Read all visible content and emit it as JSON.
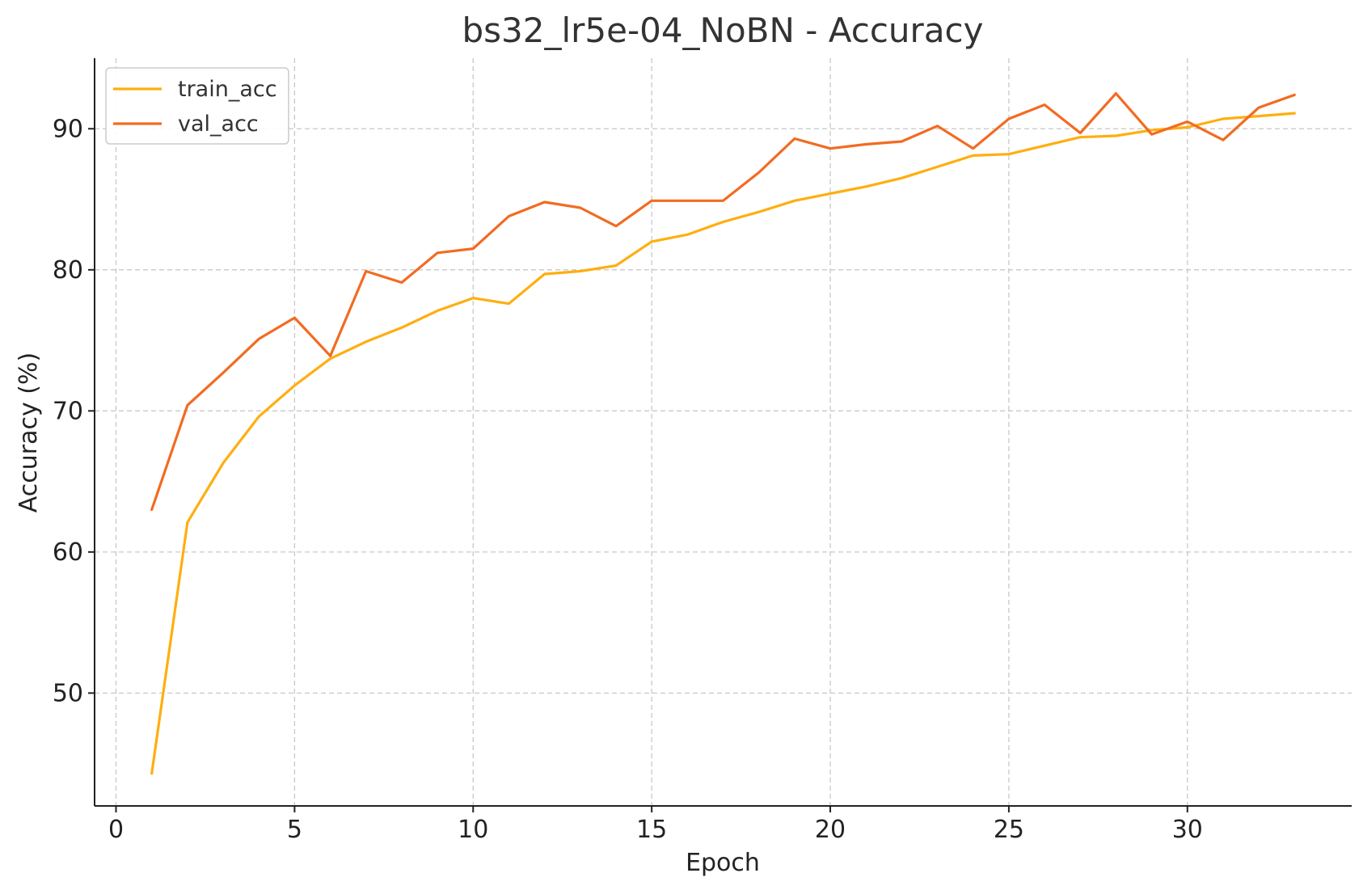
{
  "chart_data": {
    "type": "line",
    "title": "bs32_lr5e-04_NoBN - Accuracy",
    "xlabel": "Epoch",
    "ylabel": "Accuracy (%)",
    "xlim": [
      -0.6,
      34.6
    ],
    "ylim": [
      42,
      95
    ],
    "xticks": [
      0,
      5,
      10,
      15,
      20,
      25,
      30
    ],
    "yticks": [
      50,
      60,
      70,
      80,
      90
    ],
    "grid": true,
    "legend_position": "top-left",
    "x": [
      1,
      2,
      3,
      4,
      5,
      6,
      7,
      8,
      9,
      10,
      11,
      12,
      13,
      14,
      15,
      16,
      17,
      18,
      19,
      20,
      21,
      22,
      23,
      24,
      25,
      26,
      27,
      28,
      29,
      30,
      31,
      32,
      33
    ],
    "series": [
      {
        "name": "train_acc",
        "color": "#FFAE10",
        "values": [
          44.3,
          62.1,
          66.3,
          69.6,
          71.8,
          73.7,
          74.9,
          75.9,
          77.1,
          78.0,
          77.6,
          79.7,
          79.9,
          80.3,
          82.0,
          82.5,
          83.4,
          84.1,
          84.9,
          85.4,
          85.9,
          86.5,
          87.3,
          88.1,
          88.2,
          88.8,
          89.4,
          89.5,
          89.9,
          90.1,
          90.7,
          90.9,
          91.1
        ]
      },
      {
        "name": "val_acc",
        "color": "#F26B21",
        "values": [
          63.0,
          70.4,
          72.7,
          75.1,
          76.6,
          73.9,
          79.9,
          79.1,
          81.2,
          81.5,
          83.8,
          84.8,
          84.4,
          83.1,
          84.9,
          84.9,
          84.9,
          86.9,
          89.3,
          88.6,
          88.9,
          89.1,
          90.2,
          88.6,
          90.7,
          91.7,
          89.7,
          92.5,
          89.6,
          90.5,
          89.2,
          91.5,
          92.4
        ]
      }
    ]
  }
}
